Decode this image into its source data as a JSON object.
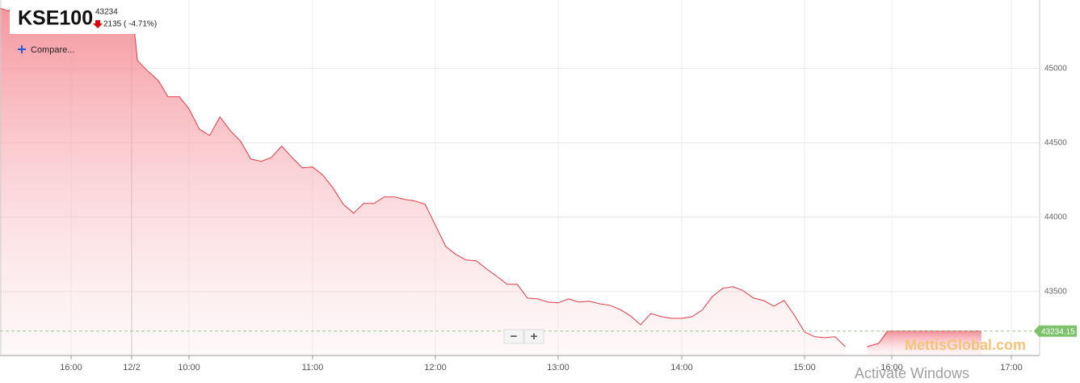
{
  "chart_data": {
    "type": "area",
    "title": "KSE100",
    "last_value": 43234,
    "change_text": "2135 ( -4.71%)",
    "compare_label": "Compare...",
    "zoom_buttons": [
      "−",
      "+"
    ],
    "color": "#dd3b45",
    "x": [
      -560,
      -550,
      -540,
      -480,
      560,
      570,
      573,
      577,
      584,
      589,
      595,
      600,
      605,
      610,
      615,
      620,
      625,
      630,
      635,
      640,
      645,
      650,
      655,
      660,
      665,
      670,
      675,
      680,
      685,
      690,
      695,
      700,
      705,
      710,
      715,
      720,
      725,
      730,
      735,
      740,
      745,
      750,
      755,
      760,
      765,
      770,
      775,
      780,
      785,
      790,
      795,
      800,
      805,
      810,
      815,
      820,
      825,
      830,
      835,
      840,
      845,
      850,
      855,
      860,
      865,
      870,
      875,
      880,
      885,
      890,
      895,
      900,
      907,
      914,
      921,
      928,
      935,
      943,
      951,
      957,
      970,
      985,
      1005
    ],
    "values": [
      45405,
      45385,
      45500,
      45500,
      45500,
      45440,
      45054,
      45000,
      44918,
      44810,
      44810,
      44728,
      44592,
      44549,
      44674,
      44582,
      44511,
      44391,
      44375,
      44402,
      44478,
      44402,
      44332,
      44337,
      44283,
      44196,
      44087,
      44027,
      44092,
      44092,
      44136,
      44136,
      44120,
      44109,
      44087,
      43946,
      43804,
      43750,
      43712,
      43707,
      43652,
      43603,
      43549,
      43549,
      43456,
      43451,
      43429,
      43424,
      43451,
      43429,
      43435,
      43418,
      43408,
      43380,
      43337,
      43277,
      43353,
      43331,
      43320,
      43320,
      43331,
      43375,
      43467,
      43522,
      43533,
      43506,
      43456,
      43440,
      43402,
      43440,
      43342,
      43228,
      43196,
      43190,
      43196,
      43130,
      null,
      43130,
      43152,
      43234,
      43234,
      43234,
      43234
    ],
    "xlim": [
      -560,
      1034
    ],
    "xticks": [
      {
        "value": -480,
        "label": "16:00"
      },
      {
        "value": 570,
        "label": "12/2"
      },
      {
        "value": 600,
        "label": "10:00"
      },
      {
        "value": 660,
        "label": "11:00"
      },
      {
        "value": 720,
        "label": "12:00"
      },
      {
        "value": 780,
        "label": "13:00"
      },
      {
        "value": 840,
        "label": "14:00"
      },
      {
        "value": 900,
        "label": "15:00"
      },
      {
        "value": 960,
        "label": "16:00"
      },
      {
        "value": 1020,
        "label": "17:00"
      }
    ],
    "ylim": [
      43070,
      45460
    ],
    "yticks": [
      43500,
      44000,
      44500,
      45000
    ],
    "grid": true,
    "price_line": 43234.15,
    "watermark": "MettisGlobal.com",
    "overlay_text": "Activate Windows"
  }
}
